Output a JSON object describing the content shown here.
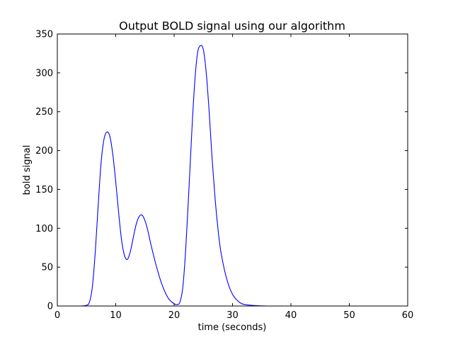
{
  "chart_data": {
    "type": "line",
    "title": "Output BOLD signal using our algorithm",
    "xlabel": "time (seconds)",
    "ylabel": "bold signal",
    "xlim": [
      0,
      60
    ],
    "ylim": [
      0,
      350
    ],
    "xticks": [
      0,
      10,
      20,
      30,
      40,
      50,
      60
    ],
    "yticks": [
      0,
      50,
      100,
      150,
      200,
      250,
      300,
      350
    ],
    "grid": false,
    "legend": "none",
    "series": [
      {
        "color": "#0000ff",
        "x": [
          0,
          1,
          2,
          3,
          4,
          5,
          5.5,
          6,
          6.5,
          7,
          7.5,
          8,
          8.5,
          9,
          9.5,
          10,
          10.5,
          11,
          11.5,
          12,
          12.5,
          13,
          13.5,
          14,
          14.5,
          15,
          15.5,
          16,
          17,
          18,
          19,
          20,
          20.5,
          21,
          21.5,
          22,
          22.5,
          23,
          23.5,
          24,
          24.5,
          25,
          25.5,
          26,
          26.5,
          27,
          27.5,
          28,
          29,
          30,
          31,
          32,
          34,
          36,
          40,
          45,
          50,
          55,
          60
        ],
        "y": [
          0,
          0,
          0,
          0,
          0,
          1,
          5,
          25,
          70,
          130,
          185,
          215,
          224,
          218,
          195,
          160,
          120,
          85,
          65,
          60,
          70,
          88,
          105,
          115,
          117,
          110,
          97,
          80,
          50,
          26,
          10,
          3,
          2,
          5,
          25,
          75,
          145,
          220,
          285,
          325,
          335,
          330,
          300,
          250,
          190,
          140,
          100,
          70,
          35,
          15,
          6,
          2,
          0.5,
          0,
          0,
          0,
          0,
          0,
          0
        ]
      }
    ]
  }
}
